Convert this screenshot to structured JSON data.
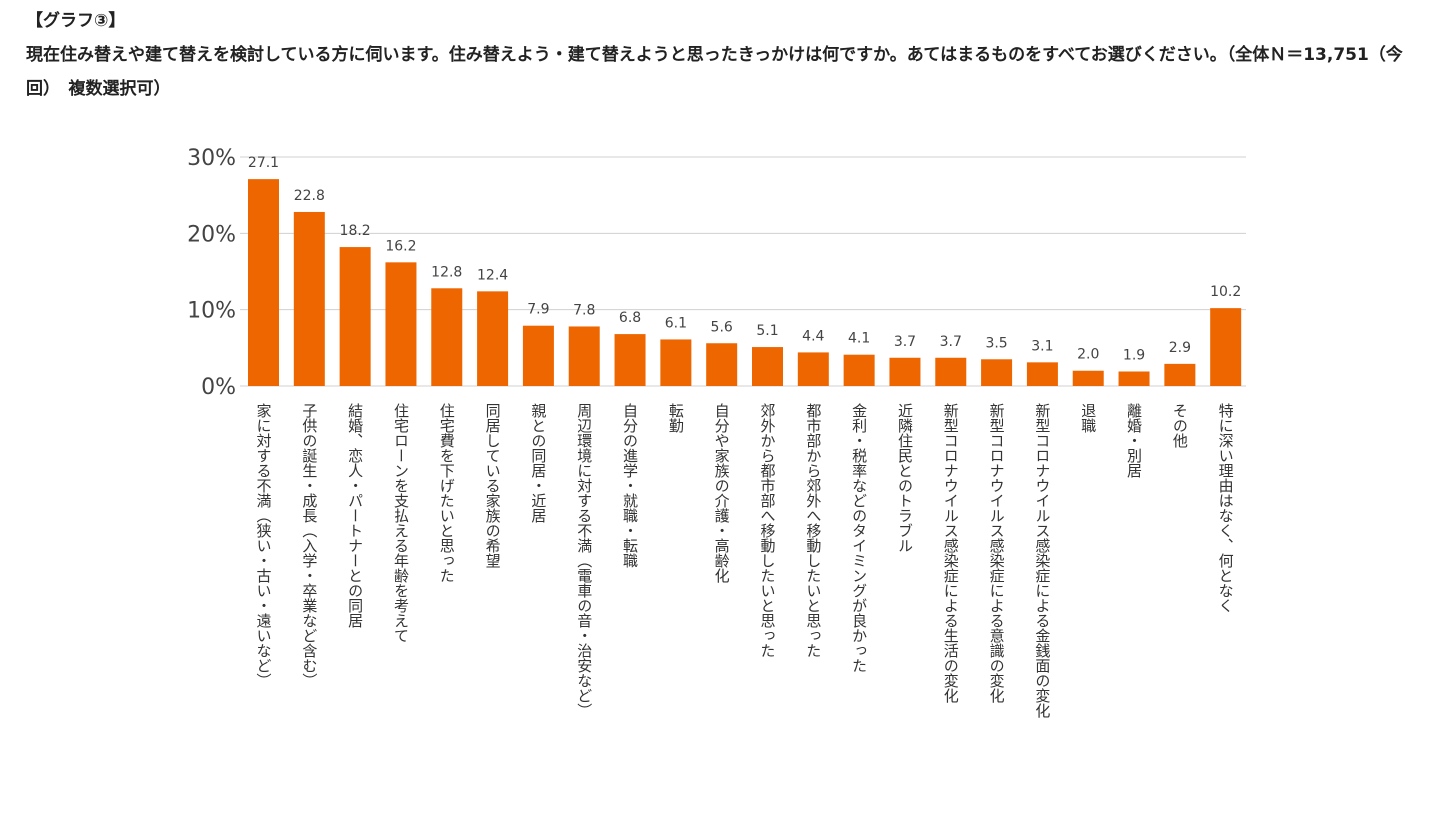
{
  "header": {
    "label": "【グラフ③】",
    "question": "現在住み替えや建て替えを検討している方に伺います。住み替えよう・建て替えようと思ったきっかけは何ですか。あてはまるものをすべてお選びください。（全体Ｎ＝13,751（今回）　複数選択可）"
  },
  "colors": {
    "bar": "#EE6600",
    "grid": "#d0d0d0"
  },
  "chart_data": {
    "type": "bar",
    "ylim": [
      0,
      30
    ],
    "yticks": [
      0,
      10,
      20,
      30
    ],
    "ytick_labels": [
      "0%",
      "10%",
      "20%",
      "30%"
    ],
    "grid": true,
    "categories": [
      "家に対する不満（狭い・古い・遠いなど）",
      "子供の誕生・成長（入学・卒業など含む）",
      "結婚、恋人・パートナーとの同居",
      "住宅ローンを支払える年齢を考えて",
      "住宅費を下げたいと思った",
      "同居している家族の希望",
      "親との同居・近居",
      "周辺環境に対する不満（電車の音・治安など）",
      "自分の進学・就職・転職",
      "転勤",
      "自分や家族の介護・高齢化",
      "郊外から都市部へ移動したいと思った",
      "都市部から郊外へ移動したいと思った",
      "金利・税率などのタイミングが良かった",
      "近隣住民とのトラブル",
      "新型コロナウイルス感染症による生活の変化",
      "新型コロナウイルス感染症による意識の変化",
      "新型コロナウイルス感染症による金銭面の変化",
      "退職",
      "離婚・別居",
      "その他",
      "特に深い理由はなく、何となく"
    ],
    "values": [
      27.1,
      22.8,
      18.2,
      16.2,
      12.8,
      12.4,
      7.9,
      7.8,
      6.8,
      6.1,
      5.6,
      5.1,
      4.4,
      4.1,
      3.7,
      3.7,
      3.5,
      3.1,
      2.0,
      1.9,
      2.9,
      10.2
    ],
    "value_labels": [
      "27.1",
      "22.8",
      "18.2",
      "16.2",
      "12.8",
      "12.4",
      "7.9",
      "7.8",
      "6.8",
      "6.1",
      "5.6",
      "5.1",
      "4.4",
      "4.1",
      "3.7",
      "3.7",
      "3.5",
      "3.1",
      "2.0",
      "1.9",
      "2.9",
      "10.2"
    ]
  }
}
